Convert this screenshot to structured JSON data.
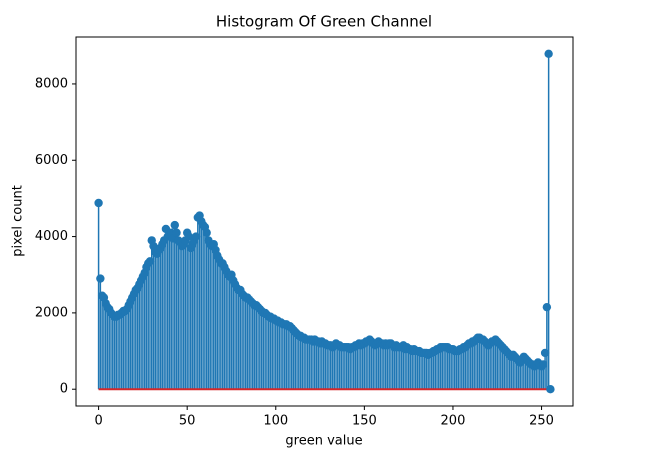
{
  "chart_data": {
    "type": "stem",
    "title": "Histogram Of Green Channel",
    "x_label": "green value",
    "y_label": "pixel count",
    "color": "#1f77b4",
    "baseline_color": "#d62728",
    "x": [
      0,
      1,
      2,
      3,
      4,
      5,
      6,
      7,
      8,
      9,
      10,
      11,
      12,
      13,
      14,
      15,
      16,
      17,
      18,
      19,
      20,
      21,
      22,
      23,
      24,
      25,
      26,
      27,
      28,
      29,
      30,
      31,
      32,
      33,
      34,
      35,
      36,
      37,
      38,
      39,
      40,
      41,
      42,
      43,
      44,
      45,
      46,
      47,
      48,
      49,
      50,
      51,
      52,
      53,
      54,
      55,
      56,
      57,
      58,
      59,
      60,
      61,
      62,
      63,
      64,
      65,
      66,
      67,
      68,
      69,
      70,
      71,
      72,
      73,
      74,
      75,
      76,
      77,
      78,
      79,
      80,
      81,
      82,
      83,
      84,
      85,
      86,
      87,
      88,
      89,
      90,
      91,
      92,
      93,
      94,
      95,
      96,
      97,
      98,
      99,
      100,
      101,
      102,
      103,
      104,
      105,
      106,
      107,
      108,
      109,
      110,
      111,
      112,
      113,
      114,
      115,
      116,
      117,
      118,
      119,
      120,
      121,
      122,
      123,
      124,
      125,
      126,
      127,
      128,
      129,
      130,
      131,
      132,
      133,
      134,
      135,
      136,
      137,
      138,
      139,
      140,
      141,
      142,
      143,
      144,
      145,
      146,
      147,
      148,
      149,
      150,
      151,
      152,
      153,
      154,
      155,
      156,
      157,
      158,
      159,
      160,
      161,
      162,
      163,
      164,
      165,
      166,
      167,
      168,
      169,
      170,
      171,
      172,
      173,
      174,
      175,
      176,
      177,
      178,
      179,
      180,
      181,
      182,
      183,
      184,
      185,
      186,
      187,
      188,
      189,
      190,
      191,
      192,
      193,
      194,
      195,
      196,
      197,
      198,
      199,
      200,
      201,
      202,
      203,
      204,
      205,
      206,
      207,
      208,
      209,
      210,
      211,
      212,
      213,
      214,
      215,
      216,
      217,
      218,
      219,
      220,
      221,
      222,
      223,
      224,
      225,
      226,
      227,
      228,
      229,
      230,
      231,
      232,
      233,
      234,
      235,
      236,
      237,
      238,
      239,
      240,
      241,
      242,
      243,
      244,
      245,
      246,
      247,
      248,
      249,
      250,
      251,
      252,
      253,
      254,
      255
    ],
    "values": [
      4880,
      2900,
      2450,
      2400,
      2250,
      2150,
      2100,
      2000,
      1950,
      1900,
      1900,
      1950,
      1950,
      2000,
      2050,
      2050,
      2100,
      2200,
      2300,
      2400,
      2500,
      2600,
      2650,
      2750,
      2850,
      2950,
      3050,
      3200,
      3300,
      3350,
      3900,
      3750,
      3600,
      3550,
      3650,
      3700,
      3800,
      3900,
      4200,
      4000,
      4050,
      4100,
      3950,
      4300,
      4100,
      3900,
      3850,
      3750,
      3800,
      3900,
      4100,
      4000,
      3700,
      3800,
      3900,
      4000,
      4500,
      4550,
      4400,
      4300,
      4250,
      4100,
      3900,
      3800,
      3750,
      3800,
      3650,
      3500,
      3400,
      3300,
      3300,
      3200,
      3100,
      3000,
      2950,
      3000,
      2850,
      2750,
      2650,
      2600,
      2600,
      2500,
      2450,
      2400,
      2400,
      2350,
      2300,
      2250,
      2200,
      2200,
      2150,
      2100,
      2050,
      2000,
      2000,
      1950,
      1900,
      1900,
      1850,
      1850,
      1800,
      1800,
      1750,
      1750,
      1700,
      1700,
      1700,
      1650,
      1650,
      1600,
      1550,
      1500,
      1450,
      1400,
      1400,
      1350,
      1350,
      1300,
      1300,
      1300,
      1300,
      1250,
      1300,
      1250,
      1250,
      1200,
      1250,
      1200,
      1200,
      1150,
      1150,
      1150,
      1100,
      1150,
      1200,
      1150,
      1150,
      1100,
      1100,
      1100,
      1100,
      1100,
      1050,
      1100,
      1100,
      1150,
      1150,
      1200,
      1150,
      1200,
      1200,
      1250,
      1250,
      1300,
      1250,
      1200,
      1150,
      1200,
      1250,
      1200,
      1200,
      1150,
      1200,
      1150,
      1200,
      1200,
      1150,
      1100,
      1150,
      1100,
      1100,
      1100,
      1150,
      1050,
      1100,
      1050,
      1050,
      1000,
      1050,
      1000,
      1000,
      1000,
      950,
      950,
      950,
      950,
      900,
      950,
      950,
      1000,
      1000,
      1050,
      1050,
      1100,
      1100,
      1100,
      1100,
      1100,
      1050,
      1050,
      1050,
      1000,
      1000,
      1000,
      1050,
      1050,
      1100,
      1100,
      1150,
      1200,
      1200,
      1250,
      1250,
      1300,
      1350,
      1350,
      1300,
      1300,
      1250,
      1200,
      1150,
      1200,
      1250,
      1250,
      1300,
      1250,
      1200,
      1150,
      1100,
      1050,
      1000,
      950,
      900,
      850,
      900,
      850,
      800,
      750,
      700,
      750,
      850,
      800,
      750,
      700,
      650,
      650,
      600,
      650,
      700,
      650,
      600,
      650,
      950,
      2150,
      8790,
      0
    ],
    "xlim": [
      -12.75,
      267.75
    ],
    "xticks": [
      0,
      50,
      100,
      150,
      200,
      250
    ],
    "ylim": [
      -440,
      9230
    ],
    "yticks": [
      0,
      2000,
      4000,
      6000,
      8000
    ]
  }
}
